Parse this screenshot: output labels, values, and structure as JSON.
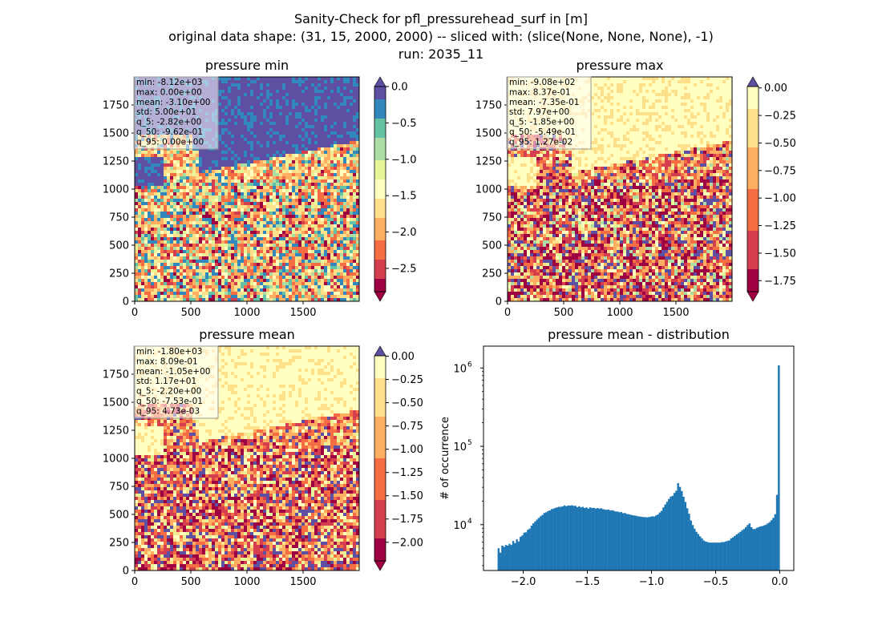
{
  "figure": {
    "title_lines": [
      "Sanity-Check for pfl_pressurehead_surf in [m]",
      "original data shape: (31, 15, 2000, 2000) -- sliced with: (slice(None, None, None), -1)",
      "run: 2035_11"
    ]
  },
  "colors": {
    "hist_bar": "#1f77b4",
    "spectral": [
      "#9e0142",
      "#d53e4f",
      "#f46d43",
      "#fdae61",
      "#fee08b",
      "#ffffbf",
      "#e6f598",
      "#abdda4",
      "#66c2a5",
      "#3288bd",
      "#5e4fa2"
    ]
  },
  "panels": [
    {
      "title": "pressure min",
      "stats": [
        "min: -8.12e+03",
        "max: 0.00e+00",
        "mean: -3.10e+00",
        "std: 5.00e+01",
        "q_5: -2.82e+00",
        "q_50: -9.62e-01",
        "q_95: 0.00e+00"
      ],
      "xticks": [
        "0",
        "500",
        "1000",
        "1500"
      ],
      "yticks": [
        "0",
        "250",
        "500",
        "750",
        "1000",
        "1250",
        "1500",
        "1750"
      ],
      "colorbar": {
        "ticks": [
          "0.0",
          "−0.5",
          "−1.0",
          "−1.5",
          "−2.0",
          "−2.5"
        ],
        "extend": "both"
      }
    },
    {
      "title": "pressure max",
      "stats": [
        "min: -9.08e+02",
        "max: 8.37e-01",
        "mean: -7.35e-01",
        "std: 7.97e+00",
        "q_5: -1.85e+00",
        "q_50: -5.49e-01",
        "q_95: 1.27e-02"
      ],
      "xticks": [
        "0",
        "500",
        "1000",
        "1500"
      ],
      "yticks": [
        "0",
        "250",
        "500",
        "750",
        "1000",
        "1250",
        "1500",
        "1750"
      ],
      "colorbar": {
        "ticks": [
          "0.00",
          "−0.25",
          "−0.50",
          "−0.75",
          "−1.00",
          "−1.25",
          "−1.50",
          "−1.75"
        ],
        "extend": "both"
      }
    },
    {
      "title": "pressure mean",
      "stats": [
        "min: -1.80e+03",
        "max: 8.09e-01",
        "mean: -1.05e+00",
        "std: 1.17e+01",
        "q_5: -2.20e+00",
        "q_50: -7.53e-01",
        "q_95: 4.73e-03"
      ],
      "xticks": [
        "0",
        "500",
        "1000",
        "1500"
      ],
      "yticks": [
        "0",
        "250",
        "500",
        "750",
        "1000",
        "1250",
        "1500",
        "1750"
      ],
      "colorbar": {
        "ticks": [
          "0.00",
          "−0.25",
          "−0.50",
          "−0.75",
          "−1.00",
          "−1.25",
          "−1.50",
          "−1.75",
          "−2.00"
        ],
        "extend": "both"
      }
    }
  ],
  "chart_data": [
    {
      "type": "heatmap",
      "title": "pressure min",
      "x_range": [
        0,
        2000
      ],
      "y_range": [
        0,
        2000
      ],
      "colorbar_range": [
        -2.82,
        0.0
      ],
      "colormap": "Spectral"
    },
    {
      "type": "heatmap",
      "title": "pressure max",
      "x_range": [
        0,
        2000
      ],
      "y_range": [
        0,
        2000
      ],
      "colorbar_range": [
        -1.85,
        0.0127
      ],
      "colormap": "Spectral"
    },
    {
      "type": "heatmap",
      "title": "pressure mean",
      "x_range": [
        0,
        2000
      ],
      "y_range": [
        0,
        2000
      ],
      "colorbar_range": [
        -2.2,
        0.0047
      ],
      "colormap": "Spectral"
    },
    {
      "type": "bar",
      "title": "pressure mean - distribution",
      "ylabel": "# of occurrence",
      "yscale": "log",
      "xlim": [
        -2.31,
        0.11
      ],
      "ylim": [
        2600,
        1900000
      ],
      "xticks": [
        "−2.0",
        "−1.5",
        "−1.0",
        "−0.5",
        "0.0"
      ],
      "yticks": [
        {
          "value": 10000,
          "base": "10",
          "exp": "4"
        },
        {
          "value": 100000,
          "base": "10",
          "exp": "5"
        },
        {
          "value": 1000000,
          "base": "10",
          "exp": "6"
        }
      ],
      "bin_range": [
        -2.2,
        0.0
      ],
      "bin_counts": [
        5000,
        4400,
        5400,
        5200,
        5500,
        5400,
        5700,
        5500,
        6200,
        5800,
        6500,
        6100,
        7000,
        7300,
        7900,
        8000,
        8600,
        8900,
        9700,
        10400,
        11000,
        11600,
        12200,
        12800,
        13300,
        14100,
        14400,
        14900,
        15200,
        15800,
        16000,
        16400,
        16600,
        16900,
        16900,
        17100,
        17600,
        17200,
        17600,
        17500,
        17700,
        17400,
        17400,
        16700,
        17200,
        16600,
        16900,
        16300,
        16600,
        16000,
        16600,
        16300,
        16400,
        16000,
        16300,
        16000,
        16200,
        15800,
        15600,
        15500,
        15600,
        15200,
        15300,
        15000,
        14700,
        14700,
        14400,
        14500,
        14000,
        14100,
        13700,
        13600,
        13400,
        13200,
        13100,
        13000,
        12800,
        12700,
        12600,
        12500,
        12500,
        12400,
        12500,
        12600,
        12800,
        12700,
        13100,
        13500,
        14300,
        15000,
        16600,
        18100,
        19600,
        21300,
        22800,
        23300,
        25400,
        27100,
        33900,
        30300,
        26900,
        22700,
        19500,
        16200,
        13800,
        11300,
        9900,
        8900,
        8100,
        7600,
        7100,
        6700,
        6300,
        6100,
        6000,
        5900,
        5900,
        5900,
        5900,
        5900,
        5900,
        5900,
        6000,
        6000,
        6100,
        6200,
        6300,
        6700,
        6900,
        7200,
        7500,
        7800,
        8100,
        8500,
        8800,
        9300,
        9900,
        10400,
        9300,
        8800,
        8800,
        9100,
        9300,
        9500,
        9600,
        9800,
        10000,
        10400,
        10800,
        11400,
        12200,
        13600,
        24000,
        1080000
      ]
    }
  ]
}
